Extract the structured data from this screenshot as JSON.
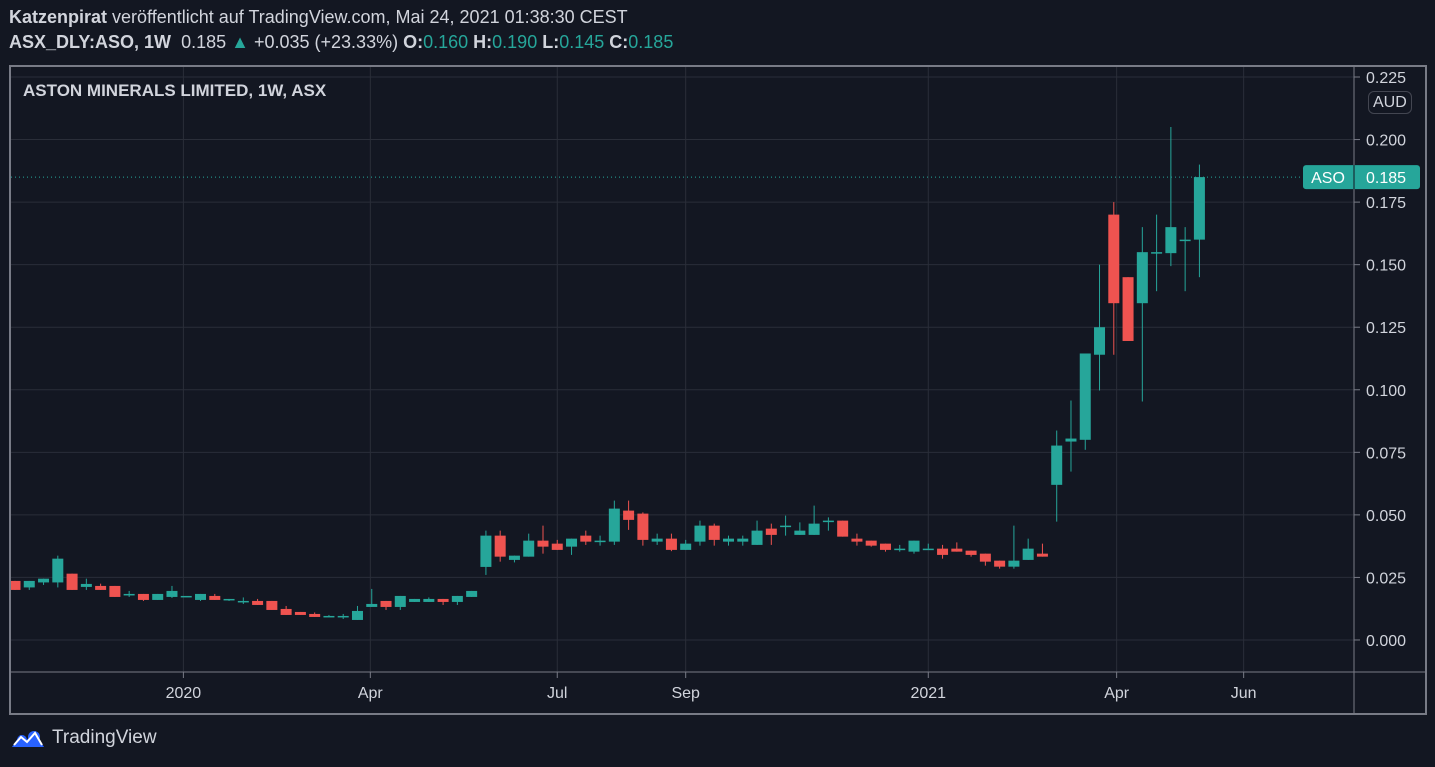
{
  "header": {
    "author": "Katzenpirat",
    "published": "veröffentlicht auf TradingView.com, Mai 24, 2021 01:38:30 CEST",
    "symbol": "ASX_DLY:ASO, 1W",
    "last": "0.185",
    "change": "+0.035 (+23.33%)",
    "o_label": "O:",
    "o": "0.160",
    "h_label": "H:",
    "h": "0.190",
    "l_label": "L:",
    "l": "0.145",
    "c_label": "C:",
    "c": "0.185"
  },
  "currency": "AUD",
  "brand": "TradingView",
  "colors": {
    "up": "#26a69a",
    "down": "#ef5350",
    "bg": "#131722",
    "grid": "#2a2e39"
  },
  "chart_data": {
    "type": "candlestick",
    "title": "ASTON MINERALS LIMITED, 1W, ASX",
    "ylim": [
      -0.0128,
      0.229
    ],
    "yticks": [
      "0.000",
      "0.025",
      "0.050",
      "0.075",
      "0.100",
      "0.125",
      "0.150",
      "0.175",
      "0.200",
      "0.225"
    ],
    "xticks": [
      {
        "label": "2020",
        "week": 11.8
      },
      {
        "label": "Apr",
        "week": 24.9
      },
      {
        "label": "Jul",
        "week": 38.0
      },
      {
        "label": "Sep",
        "week": 47.0
      },
      {
        "label": "2021",
        "week": 64.0
      },
      {
        "label": "Apr",
        "week": 77.2
      },
      {
        "label": "Jun",
        "week": 86.1
      }
    ],
    "last_price": {
      "symbol": "ASO",
      "value": 0.185,
      "label": "0.185"
    },
    "ohlc": [
      [
        0.0236,
        0.0236,
        0.02,
        0.02
      ],
      [
        0.021,
        0.0236,
        0.02,
        0.0236
      ],
      [
        0.023,
        0.0245,
        0.022,
        0.0245
      ],
      [
        0.023,
        0.0337,
        0.021,
        0.0325
      ],
      [
        0.0265,
        0.0265,
        0.02,
        0.02
      ],
      [
        0.0212,
        0.0245,
        0.02,
        0.0224
      ],
      [
        0.0216,
        0.0225,
        0.02,
        0.02
      ],
      [
        0.0216,
        0.0216,
        0.0172,
        0.0172
      ],
      [
        0.0184,
        0.0196,
        0.0172,
        0.0184
      ],
      [
        0.0184,
        0.0184,
        0.0156,
        0.016
      ],
      [
        0.016,
        0.0184,
        0.016,
        0.0184
      ],
      [
        0.0172,
        0.0216,
        0.0168,
        0.0196
      ],
      [
        0.0176,
        0.0176,
        0.0176,
        0.0176
      ],
      [
        0.016,
        0.0184,
        0.0156,
        0.0184
      ],
      [
        0.0176,
        0.0184,
        0.016,
        0.016
      ],
      [
        0.0164,
        0.0164,
        0.0156,
        0.0164
      ],
      [
        0.0156,
        0.017,
        0.0144,
        0.0156
      ],
      [
        0.0156,
        0.0164,
        0.014,
        0.014
      ],
      [
        0.0156,
        0.0156,
        0.012,
        0.012
      ],
      [
        0.0124,
        0.0136,
        0.01,
        0.01
      ],
      [
        0.0112,
        0.0112,
        0.01,
        0.01
      ],
      [
        0.0104,
        0.011,
        0.0092,
        0.0092
      ],
      [
        0.0096,
        0.01,
        0.0096,
        0.0096
      ],
      [
        0.0096,
        0.0104,
        0.0084,
        0.0096
      ],
      [
        0.008,
        0.0136,
        0.008,
        0.0116
      ],
      [
        0.0132,
        0.0204,
        0.0132,
        0.0144
      ],
      [
        0.0156,
        0.0156,
        0.012,
        0.0132
      ],
      [
        0.0132,
        0.0176,
        0.012,
        0.0176
      ],
      [
        0.0152,
        0.0164,
        0.0152,
        0.0164
      ],
      [
        0.0152,
        0.017,
        0.0152,
        0.0164
      ],
      [
        0.0164,
        0.0164,
        0.014,
        0.0152
      ],
      [
        0.0152,
        0.0176,
        0.014,
        0.0176
      ],
      [
        0.0172,
        0.0196,
        0.0172,
        0.0196
      ],
      [
        0.0292,
        0.0437,
        0.026,
        0.0417
      ],
      [
        0.0417,
        0.0437,
        0.0313,
        0.0333
      ],
      [
        0.032,
        0.0337,
        0.031,
        0.0337
      ],
      [
        0.0333,
        0.0425,
        0.0333,
        0.0397
      ],
      [
        0.0397,
        0.0457,
        0.0345,
        0.0373
      ],
      [
        0.0385,
        0.04,
        0.036,
        0.036
      ],
      [
        0.0373,
        0.0405,
        0.034,
        0.0405
      ],
      [
        0.0417,
        0.0437,
        0.038,
        0.0393
      ],
      [
        0.0397,
        0.0417,
        0.0377,
        0.0397
      ],
      [
        0.0393,
        0.0557,
        0.038,
        0.0525
      ],
      [
        0.0517,
        0.0557,
        0.044,
        0.048
      ],
      [
        0.0505,
        0.051,
        0.0377,
        0.04
      ],
      [
        0.0393,
        0.0425,
        0.038,
        0.0405
      ],
      [
        0.0405,
        0.0425,
        0.0355,
        0.036
      ],
      [
        0.036,
        0.04,
        0.036,
        0.0385
      ],
      [
        0.0393,
        0.0477,
        0.0377,
        0.0457
      ],
      [
        0.0457,
        0.0465,
        0.0377,
        0.04
      ],
      [
        0.0393,
        0.0417,
        0.0377,
        0.0405
      ],
      [
        0.0393,
        0.0417,
        0.0377,
        0.0405
      ],
      [
        0.038,
        0.0477,
        0.038,
        0.0437
      ],
      [
        0.0445,
        0.0465,
        0.038,
        0.042
      ],
      [
        0.0457,
        0.0497,
        0.0417,
        0.0457
      ],
      [
        0.042,
        0.047,
        0.042,
        0.0437
      ],
      [
        0.042,
        0.0537,
        0.042,
        0.0465
      ],
      [
        0.0477,
        0.049,
        0.0437,
        0.0477
      ],
      [
        0.0477,
        0.0477,
        0.0413,
        0.0413
      ],
      [
        0.0405,
        0.0425,
        0.0377,
        0.0393
      ],
      [
        0.0397,
        0.0397,
        0.0373,
        0.0377
      ],
      [
        0.0385,
        0.0385,
        0.0353,
        0.036
      ],
      [
        0.0365,
        0.038,
        0.0353,
        0.0365
      ],
      [
        0.0353,
        0.0397,
        0.0345,
        0.0397
      ],
      [
        0.0365,
        0.0385,
        0.0365,
        0.0365
      ],
      [
        0.0365,
        0.038,
        0.0325,
        0.034
      ],
      [
        0.0365,
        0.039,
        0.0353,
        0.0353
      ],
      [
        0.0357,
        0.0357,
        0.0333,
        0.034
      ],
      [
        0.0345,
        0.0345,
        0.0297,
        0.0313
      ],
      [
        0.0317,
        0.0317,
        0.0285,
        0.0293
      ],
      [
        0.0293,
        0.0457,
        0.0285,
        0.0317
      ],
      [
        0.032,
        0.0405,
        0.032,
        0.0365
      ],
      [
        0.0345,
        0.0385,
        0.0333,
        0.0333
      ],
      [
        0.062,
        0.0837,
        0.0473,
        0.0777
      ],
      [
        0.0793,
        0.0957,
        0.0673,
        0.0805
      ],
      [
        0.08,
        0.1145,
        0.076,
        0.1145
      ],
      [
        0.114,
        0.15,
        0.0997,
        0.125
      ],
      [
        0.17,
        0.175,
        0.114,
        0.1346
      ],
      [
        0.145,
        0.145,
        0.1195,
        0.1195
      ],
      [
        0.1346,
        0.165,
        0.0953,
        0.155
      ],
      [
        0.155,
        0.17,
        0.1394,
        0.155
      ],
      [
        0.1546,
        0.205,
        0.1494,
        0.165
      ],
      [
        0.16,
        0.165,
        0.1394,
        0.16
      ],
      [
        0.16,
        0.19,
        0.145,
        0.185
      ]
    ]
  }
}
